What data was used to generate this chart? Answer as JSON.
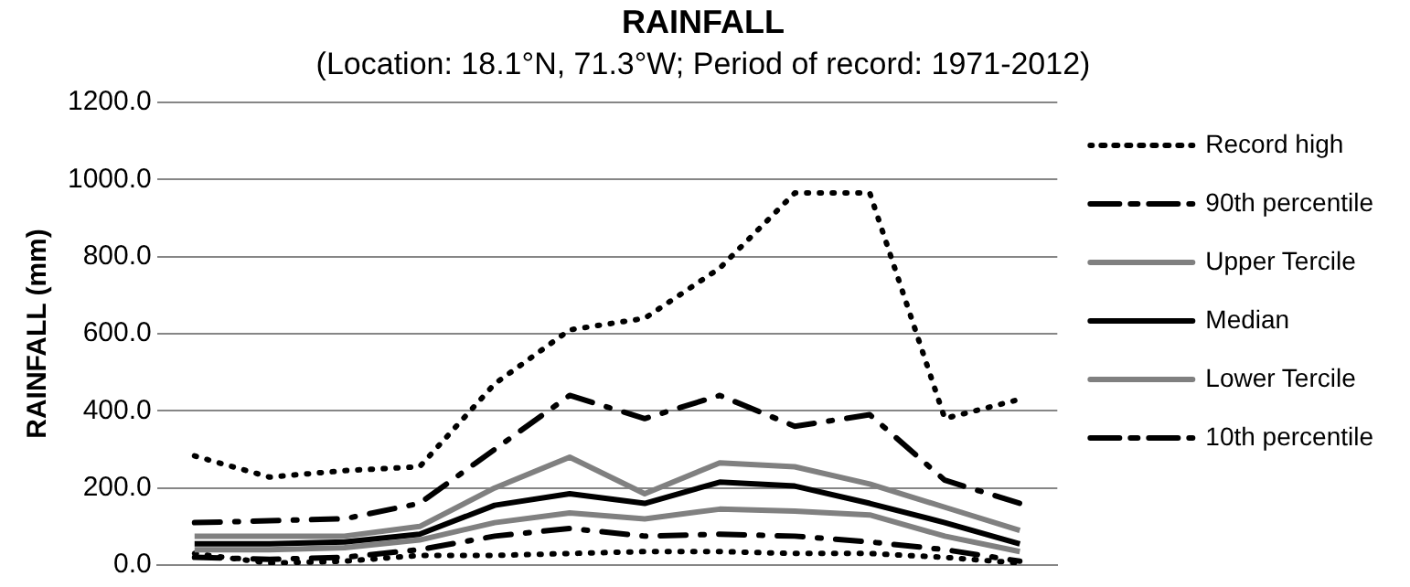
{
  "chart_data": {
    "type": "line",
    "title": "RAINFALL",
    "subtitle": "(Location: 18.1°N, 71.3°W; Period of record: 1971-2012)",
    "ylabel": "RAINFALL (mm)",
    "categories": [
      null,
      null,
      null,
      null,
      null,
      null,
      null,
      null,
      null,
      null,
      null,
      null
    ],
    "series": [
      {
        "name": "Record high",
        "color": "#000000",
        "line_style": "dotted",
        "values": [
          283,
          228,
          245,
          255,
          470,
          610,
          640,
          770,
          965,
          965,
          380,
          430
        ]
      },
      {
        "name": "90th percentile",
        "color": "#000000",
        "line_style": "dashdot",
        "values": [
          110,
          115,
          120,
          160,
          300,
          440,
          380,
          440,
          360,
          390,
          220,
          160
        ]
      },
      {
        "name": "Upper Tercile",
        "color": "#808080",
        "line_style": "solid",
        "values": [
          75,
          75,
          75,
          100,
          200,
          280,
          185,
          265,
          255,
          210,
          150,
          90
        ]
      },
      {
        "name": "Median",
        "color": "#000000",
        "line_style": "solid",
        "values": [
          55,
          55,
          60,
          80,
          155,
          185,
          160,
          215,
          205,
          160,
          110,
          55
        ]
      },
      {
        "name": "Lower Tercile",
        "color": "#808080",
        "line_style": "solid",
        "values": [
          40,
          40,
          45,
          65,
          110,
          135,
          120,
          145,
          140,
          130,
          75,
          35
        ]
      },
      {
        "name": "10th percentile",
        "color": "#000000",
        "line_style": "dashdot",
        "values": [
          20,
          15,
          20,
          40,
          75,
          95,
          75,
          80,
          75,
          60,
          40,
          10
        ]
      },
      {
        "color": "#000000",
        "line_style": "dotted",
        "values": [
          30,
          5,
          10,
          25,
          25,
          30,
          35,
          35,
          30,
          30,
          20,
          5
        ]
      }
    ],
    "ylim": [
      0,
      1200
    ],
    "yticks": [
      {
        "value": 0,
        "label": "0.0"
      },
      {
        "value": 200,
        "label": "200.0"
      },
      {
        "value": 400,
        "label": "400.0"
      },
      {
        "value": 600,
        "label": "600.0"
      },
      {
        "value": 800,
        "label": "800.0"
      },
      {
        "value": 1000,
        "label": "1000.0"
      },
      {
        "value": 1200,
        "label": "1200.0"
      }
    ],
    "grid": "y",
    "legend": "right",
    "tick_labels": "y",
    "marker": "none"
  }
}
